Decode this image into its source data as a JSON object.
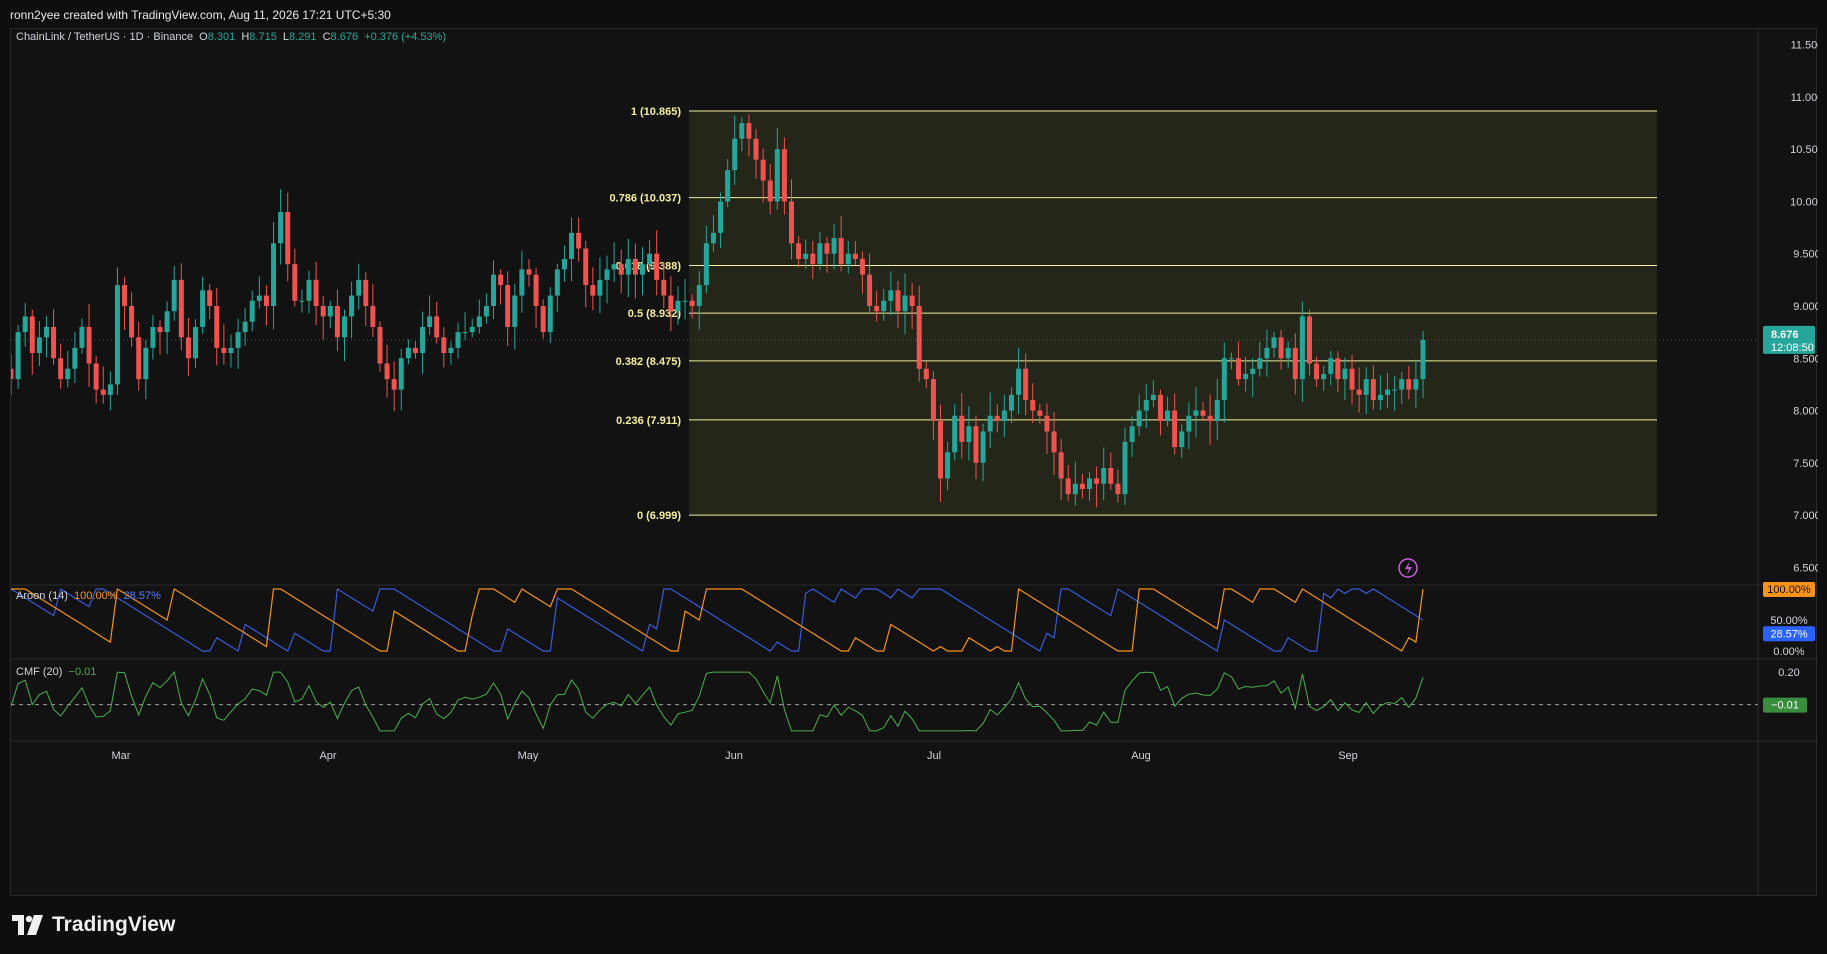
{
  "header": {
    "attribution": "ronn2yee created with TradingView.com, Aug 11, 2026 17:21 UTC+5:30"
  },
  "symbol": {
    "name": "ChainLink / TetherUS · 1D · Binance",
    "open_label": "O",
    "open": "8.301",
    "high_label": "H",
    "high": "8.715",
    "low_label": "L",
    "low": "8.291",
    "close_label": "C",
    "close": "8.676",
    "change": "+0.376 (+4.53%)"
  },
  "price_badge": {
    "price": "8.676",
    "countdown": "12:08:50"
  },
  "colors": {
    "up": "#26a69a",
    "down": "#ef5350",
    "fib_zone": "#2b2d1d",
    "fib_line": "#f5ee9e",
    "aroon_up": "#f7931a",
    "aroon_down": "#3a5bd9",
    "cmf": "#4caf50"
  },
  "indicators": {
    "aroon": {
      "label": "Aroon (14)",
      "up": "100.00%",
      "down": "28.57%"
    },
    "cmf": {
      "label": "CMF (20)",
      "value": "−0.01",
      "badge": "−0.01"
    }
  },
  "brand": {
    "name": "TradingView"
  },
  "chart_data": {
    "type": "candlestick",
    "interval": "1D",
    "y_axis": {
      "ticks": [
        6.5,
        7.0,
        7.5,
        8.0,
        8.5,
        9.0,
        9.5,
        10.0,
        10.5,
        11.0,
        11.5
      ],
      "ylim": [
        6.35,
        11.65
      ],
      "side": "right"
    },
    "x_axis": {
      "tick_labels": [
        "Mar",
        "Apr",
        "May",
        "Jun",
        "Jul",
        "Aug",
        "Sep"
      ],
      "range": [
        "Feb 12",
        "Sep 15"
      ]
    },
    "grid": false,
    "fibonacci": {
      "range": [
        "May 1",
        "Sep 1"
      ],
      "levels": [
        {
          "ratio": "1",
          "price": 10.865
        },
        {
          "ratio": "0.786",
          "price": 10.037
        },
        {
          "ratio": "0.618",
          "price": 9.388
        },
        {
          "ratio": "0.5",
          "price": 8.932
        },
        {
          "ratio": "0.382",
          "price": 8.475
        },
        {
          "ratio": "0.236",
          "price": 7.911
        },
        {
          "ratio": "0",
          "price": 6.999
        }
      ]
    },
    "closes": [
      8.3,
      8.75,
      8.9,
      8.55,
      8.7,
      8.8,
      8.5,
      8.3,
      8.4,
      8.6,
      8.8,
      8.45,
      8.2,
      8.15,
      8.25,
      9.2,
      9.0,
      8.7,
      8.3,
      8.6,
      8.8,
      8.75,
      8.95,
      9.25,
      8.7,
      8.5,
      8.8,
      9.15,
      9.0,
      8.6,
      8.55,
      8.6,
      8.75,
      8.85,
      9.05,
      9.1,
      9.0,
      9.6,
      9.9,
      9.4,
      9.05,
      9.05,
      9.25,
      9.0,
      8.9,
      9.0,
      8.7,
      8.9,
      9.1,
      9.25,
      9.0,
      8.8,
      8.45,
      8.3,
      8.2,
      8.5,
      8.6,
      8.55,
      8.8,
      8.9,
      8.7,
      8.55,
      8.6,
      8.75,
      8.75,
      8.8,
      8.9,
      9.0,
      9.3,
      9.2,
      8.8,
      9.1,
      9.35,
      9.3,
      9.0,
      8.75,
      9.1,
      9.35,
      9.45,
      9.7,
      9.55,
      9.2,
      9.1,
      9.25,
      9.35,
      9.4,
      9.3,
      9.45,
      9.3,
      9.4,
      9.5,
      9.25,
      9.1,
      8.95,
      9.05,
      9.05,
      9.0,
      9.2,
      9.6,
      9.7,
      10.0,
      10.3,
      10.6,
      10.75,
      10.6,
      10.4,
      10.2,
      10.0,
      10.5,
      10.0,
      9.6,
      9.45,
      9.5,
      9.4,
      9.6,
      9.5,
      9.65,
      9.4,
      9.5,
      9.45,
      9.3,
      9.0,
      8.95,
      9.05,
      9.15,
      8.95,
      9.1,
      9.0,
      8.4,
      8.3,
      7.9,
      7.35,
      7.6,
      7.95,
      7.7,
      7.85,
      7.5,
      7.8,
      7.95,
      7.9,
      8.0,
      8.15,
      8.4,
      8.1,
      8.0,
      7.95,
      7.8,
      7.6,
      7.35,
      7.2,
      7.3,
      7.25,
      7.35,
      7.3,
      7.45,
      7.3,
      7.2,
      7.7,
      7.85,
      8.0,
      8.1,
      8.15,
      7.9,
      8.0,
      7.65,
      7.8,
      7.95,
      8.0,
      7.95,
      7.9,
      8.1,
      8.5,
      8.5,
      8.3,
      8.35,
      8.4,
      8.5,
      8.6,
      8.7,
      8.5,
      8.6,
      8.3,
      8.9,
      8.45,
      8.3,
      8.35,
      8.5,
      8.3,
      8.4,
      8.2,
      8.15,
      8.3,
      8.1,
      8.15,
      8.2,
      8.2,
      8.3,
      8.2,
      8.3,
      8.676
    ]
  }
}
